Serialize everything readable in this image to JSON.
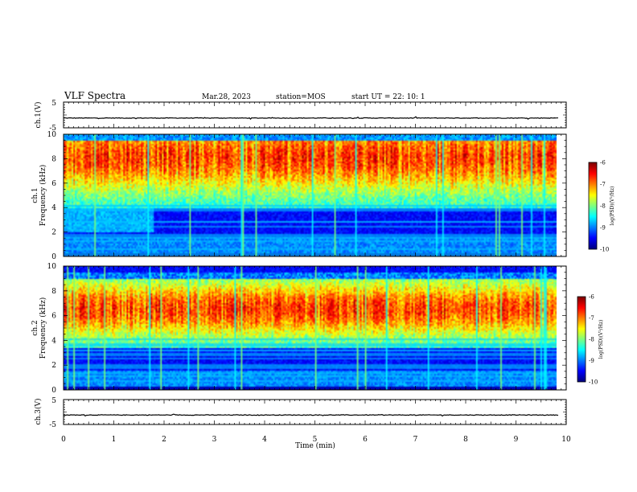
{
  "header": {
    "title": "VLF Spectra",
    "date": "Mar.28, 2023",
    "station": "station=MOS",
    "start": "start UT =   22: 10: 1"
  },
  "chart_data": [
    {
      "type": "line",
      "panel": "ch1-waveform",
      "ylabel": "ch.1(V)",
      "ylim": [
        -5,
        5
      ],
      "y_ticks": [
        "5",
        "-5"
      ],
      "baseline": -1.2,
      "xlim": [
        0,
        10
      ],
      "line_end_x": 9.85
    },
    {
      "type": "heatmap",
      "panel": "ch1-spectrogram",
      "ylabel": "ch.1",
      "ylabel2": "Frequency (kHz)",
      "ylim": [
        0,
        10
      ],
      "y_ticks": [
        "0",
        "2",
        "4",
        "6",
        "8",
        "10"
      ],
      "xlim": [
        0,
        10
      ],
      "colorbar": {
        "label": "log(PSD)(V²/Hz)",
        "range": [
          -10,
          -6
        ],
        "ticks": [
          "-6",
          "-7",
          "-8",
          "-9",
          "-10"
        ]
      },
      "emission_band_khz": [
        4,
        10
      ],
      "regime_change_min": 1.8
    },
    {
      "type": "heatmap",
      "panel": "ch2-spectrogram",
      "ylabel": "ch.2",
      "ylabel2": "Frequency (kHz)",
      "ylim": [
        0,
        10
      ],
      "y_ticks": [
        "0",
        "2",
        "4",
        "6",
        "8",
        "10"
      ],
      "xlim": [
        0,
        10
      ],
      "colorbar": {
        "label": "log(PSD)(V²/Hz)",
        "range": [
          -10,
          -6
        ],
        "ticks": [
          "-6",
          "-7",
          "-8",
          "-9",
          "-10"
        ]
      },
      "emission_band_khz": [
        3.5,
        9.5
      ]
    },
    {
      "type": "line",
      "panel": "ch3-waveform",
      "ylabel": "ch.3(V)",
      "ylim": [
        -5,
        5
      ],
      "y_ticks": [
        "5",
        "-5"
      ],
      "baseline": -1.2,
      "xlim": [
        0,
        10
      ],
      "line_end_x": 9.85,
      "xlabel": "Time  (min)",
      "x_ticks": [
        "0",
        "1",
        "2",
        "3",
        "4",
        "5",
        "6",
        "7",
        "8",
        "9",
        "10"
      ]
    }
  ],
  "colors": {
    "jet": [
      "#00007f",
      "#0000ff",
      "#007fff",
      "#00ffff",
      "#7fff7f",
      "#ffff00",
      "#ff7f00",
      "#ff0000",
      "#7f0000"
    ]
  }
}
